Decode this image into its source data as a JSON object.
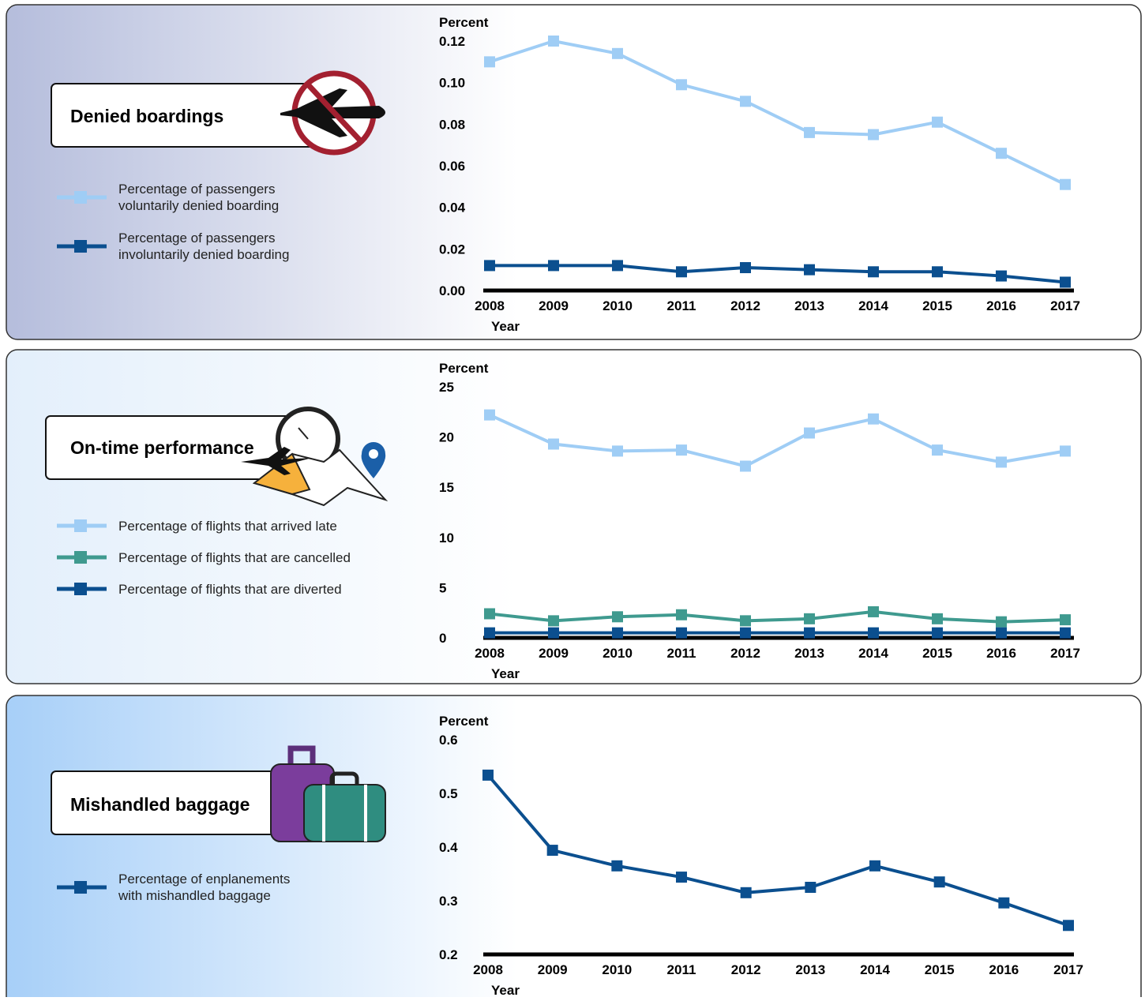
{
  "chart_data": [
    {
      "type": "line",
      "title": "Denied boardings",
      "y_label": "Percent",
      "x_label": "Year",
      "categories": [
        "2008",
        "2009",
        "2010",
        "2011",
        "2012",
        "2013",
        "2014",
        "2015",
        "2016",
        "2017"
      ],
      "series": [
        {
          "name": "Percentage of passengers voluntarily denied boarding",
          "color": "#9fcdf5",
          "values": [
            0.11,
            0.12,
            0.114,
            0.099,
            0.091,
            0.076,
            0.075,
            0.081,
            0.066,
            0.051
          ]
        },
        {
          "name": "Percentage of passengers involuntarily denied boarding",
          "color": "#0b4f8f",
          "values": [
            0.012,
            0.012,
            0.012,
            0.009,
            0.011,
            0.01,
            0.009,
            0.009,
            0.007,
            0.004
          ]
        }
      ],
      "ylim": [
        0,
        0.12
      ],
      "yticks": [
        {
          "value": 0,
          "label": "0.00"
        },
        0.02,
        0.04,
        0.06,
        0.08,
        {
          "value": 0.1,
          "label": "0.10"
        },
        0.12
      ]
    },
    {
      "type": "line",
      "title": "On-time performance",
      "y_label": "Percent",
      "x_label": "Year",
      "categories": [
        "2008",
        "2009",
        "2010",
        "2011",
        "2012",
        "2013",
        "2014",
        "2015",
        "2016",
        "2017"
      ],
      "series": [
        {
          "name": "Percentage of flights that arrived late",
          "color": "#9fcdf5",
          "values": [
            22.2,
            19.3,
            18.6,
            18.7,
            17.1,
            20.4,
            21.8,
            18.7,
            17.5,
            18.6
          ]
        },
        {
          "name": "Percentage of flights that are cancelled",
          "color": "#3f9a8f",
          "values": [
            2.4,
            1.7,
            2.1,
            2.3,
            1.7,
            1.9,
            2.6,
            1.9,
            1.6,
            1.8
          ]
        },
        {
          "name": "Percentage of flights that are diverted",
          "color": "#0b4f8f",
          "values": [
            0.5,
            0.5,
            0.5,
            0.5,
            0.5,
            0.5,
            0.5,
            0.5,
            0.5,
            0.5
          ]
        }
      ],
      "ylim": [
        0,
        25
      ],
      "yticks": [
        0,
        5,
        10,
        15,
        20,
        25
      ]
    },
    {
      "type": "line",
      "title": "Mishandled baggage",
      "y_label": "Percent",
      "x_label": "Year",
      "categories": [
        "2008",
        "2009",
        "2010",
        "2011",
        "2012",
        "2013",
        "2014",
        "2015",
        "2016",
        "2017"
      ],
      "series": [
        {
          "name": "Percentage of enplanements with mishandled baggage",
          "color": "#0b4f8f",
          "values": [
            0.534,
            0.394,
            0.365,
            0.344,
            0.315,
            0.325,
            0.365,
            0.335,
            0.296,
            0.254
          ]
        }
      ],
      "ylim": [
        0.2,
        0.6
      ],
      "yticks": [
        0.2,
        0.3,
        0.4,
        0.5,
        0.6
      ]
    }
  ]
}
